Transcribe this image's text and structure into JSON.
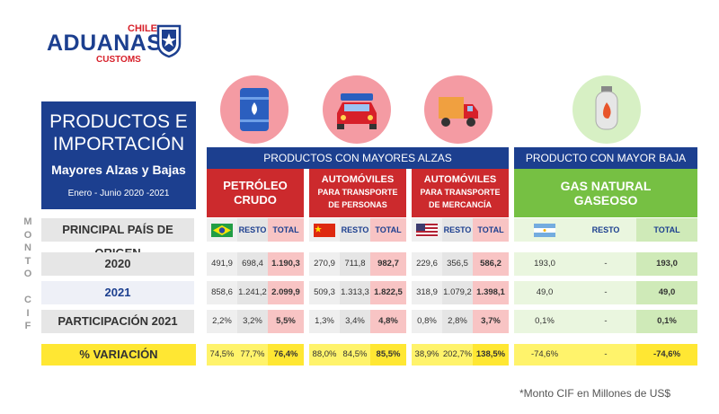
{
  "logo": {
    "top": "CHILE",
    "main": "ADUANAS",
    "sub": "CUSTOMS"
  },
  "title": {
    "line1": "PRODUCTOS E",
    "line2": "IMPORTACIÓN",
    "subtitle": "Mayores Alzas y Bajas",
    "period": "Enero - Junio 2020 -2021"
  },
  "headers": {
    "alzas": "PRODUCTOS CON MAYORES ALZAS",
    "baja": "PRODUCTO CON MAYOR BAJA"
  },
  "side_label": [
    "M",
    "O",
    "N",
    "T",
    "O",
    "",
    "C",
    "I",
    "F"
  ],
  "row_labels": {
    "origin": "PRINCIPAL PAÍS DE ORIGEN",
    "y2020": "2020",
    "y2021": "2021",
    "part": "PARTICIPACIÓN 2021",
    "var": "% VARIACIÓN"
  },
  "products": [
    {
      "name_l1": "PETRÓLEO",
      "name_l2": "CRUDO",
      "resto": "RESTO",
      "total": "TOTAL",
      "y2020": [
        "491,9",
        "698,4",
        "1.190,3"
      ],
      "y2021": [
        "858,6",
        "1.241,2",
        "2.099,9"
      ],
      "part": [
        "2,2%",
        "3,2%",
        "5,5%"
      ],
      "var": [
        "74,5%",
        "77,7%",
        "76,4%"
      ]
    },
    {
      "name_l1": "AUTOMÓVILES",
      "name_l2": "PARA TRANSPORTE",
      "name_l3": "DE PERSONAS",
      "resto": "RESTO",
      "total": "TOTAL",
      "y2020": [
        "270,9",
        "711,8",
        "982,7"
      ],
      "y2021": [
        "509,3",
        "1.313,3",
        "1.822,5"
      ],
      "part": [
        "1,3%",
        "3,4%",
        "4,8%"
      ],
      "var": [
        "88,0%",
        "84,5%",
        "85,5%"
      ]
    },
    {
      "name_l1": "AUTOMÓVILES",
      "name_l2": "PARA TRANSPORTE",
      "name_l3": "DE MERCANCÍA",
      "resto": "RESTO",
      "total": "TOTAL",
      "y2020": [
        "229,6",
        "356,5",
        "586,2"
      ],
      "y2021": [
        "318,9",
        "1.079,2",
        "1.398,1"
      ],
      "part": [
        "0,8%",
        "2,8%",
        "3,7%"
      ],
      "var": [
        "38,9%",
        "202,7%",
        "138,5%"
      ]
    },
    {
      "name_l1": "GAS NATURAL",
      "name_l2": "GASEOSO",
      "resto": "RESTO",
      "total": "TOTAL",
      "y2020": [
        "193,0",
        "-",
        "193,0"
      ],
      "y2021": [
        "49,0",
        "-",
        "49,0"
      ],
      "part": [
        "0,1%",
        "-",
        "0,1%"
      ],
      "var": [
        "-74,6%",
        "-",
        "-74,6%"
      ]
    }
  ],
  "footnote": "*Monto CIF en Millones de US$",
  "icons": [
    "oil-barrel-icon",
    "car-icon",
    "truck-icon",
    "gas-cylinder-icon"
  ],
  "colors": {
    "blue": "#1c3f8f",
    "red": "#cc2a2d",
    "green": "#76c043",
    "pink": "#f49ba3",
    "yellow": "#fff36b"
  }
}
